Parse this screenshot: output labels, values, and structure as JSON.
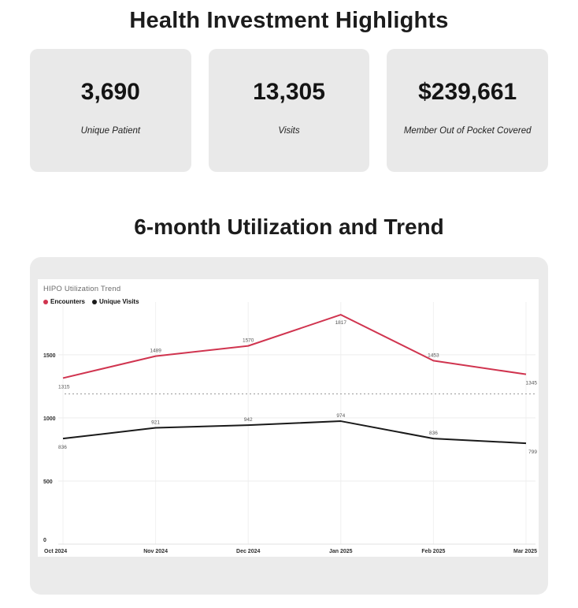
{
  "page": {
    "title": "Health Investment Highlights",
    "section_title": "6-month Utilization and Trend"
  },
  "cards": [
    {
      "value": "3,690",
      "label": "Unique Patient"
    },
    {
      "value": "13,305",
      "label": "Visits"
    },
    {
      "value": "$239,661",
      "label": "Member Out of Pocket Covered"
    }
  ],
  "chart_data": {
    "type": "line",
    "title": "HIPO Utilization Trend",
    "categories": [
      "Oct 2024",
      "Nov 2024",
      "Dec 2024",
      "Jan 2025",
      "Feb 2025",
      "Mar 2025"
    ],
    "series": [
      {
        "name": "Encounters",
        "color": "#d0344f",
        "values": [
          1315,
          1489,
          1570,
          1817,
          1453,
          1345
        ]
      },
      {
        "name": "Unique Visits",
        "color": "#1a1a1a",
        "values": [
          836,
          921,
          942,
          974,
          836,
          799
        ]
      }
    ],
    "yticks": [
      0,
      500,
      1000,
      1500
    ],
    "ylim": [
      0,
      1880
    ],
    "reference_line": {
      "value": 1190,
      "style": "dashed",
      "color": "#9a9a9a"
    },
    "grid": true,
    "legend_position": "top-left",
    "data_labels": true
  }
}
